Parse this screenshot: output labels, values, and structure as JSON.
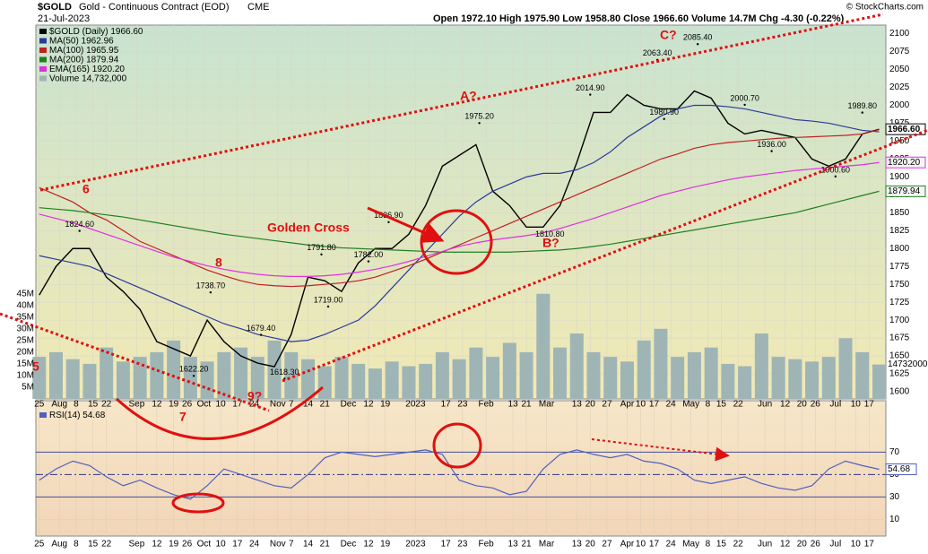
{
  "header": {
    "symbol": "$GOLD",
    "name": "Gold - Continuous Contract (EOD)",
    "exchange": "CME",
    "date": "21-Jul-2023",
    "quote": "Open 1972.10  High 1975.90  Low 1958.80  Close 1966.60  Volume 14.7M  Chg -4.30 (-0.22%)",
    "credit": "© StockCharts.com"
  },
  "notes": {
    "wave6": "6",
    "wave7": "7",
    "wave8": "8",
    "wave9": "9?",
    "waveA": "A?",
    "waveB": "B?",
    "waveC": "C?",
    "cross": "Golden Cross",
    "cut": "5"
  },
  "chart_data": {
    "type": "line",
    "x": [
      0,
      5,
      10,
      15,
      20,
      25,
      30,
      35,
      40,
      45,
      50,
      55,
      60,
      65,
      70,
      75,
      80,
      85,
      90,
      95,
      100,
      105,
      110,
      115,
      120,
      125,
      130,
      135,
      140,
      145,
      150,
      155,
      160,
      165,
      170,
      175,
      180,
      185,
      190,
      195,
      200,
      205,
      210,
      215,
      220,
      225,
      230,
      235,
      240,
      245,
      250
    ],
    "xlim": [
      -1,
      252
    ],
    "xticks": [
      {
        "value": 0,
        "label": "25"
      },
      {
        "value": 6,
        "label": "Aug"
      },
      {
        "value": 11,
        "label": "8"
      },
      {
        "value": 16,
        "label": "15"
      },
      {
        "value": 20,
        "label": "22"
      },
      {
        "value": 29,
        "label": "Sep"
      },
      {
        "value": 35,
        "label": "12"
      },
      {
        "value": 40,
        "label": "19"
      },
      {
        "value": 44,
        "label": "26"
      },
      {
        "value": 49,
        "label": "Oct"
      },
      {
        "value": 54,
        "label": "10"
      },
      {
        "value": 59,
        "label": "17"
      },
      {
        "value": 64,
        "label": "24"
      },
      {
        "value": 71,
        "label": "Nov"
      },
      {
        "value": 75,
        "label": "7"
      },
      {
        "value": 80,
        "label": "14"
      },
      {
        "value": 85,
        "label": "21"
      },
      {
        "value": 92,
        "label": "Dec"
      },
      {
        "value": 98,
        "label": "12"
      },
      {
        "value": 103,
        "label": "19"
      },
      {
        "value": 112,
        "label": "2023"
      },
      {
        "value": 121,
        "label": "17"
      },
      {
        "value": 126,
        "label": "23"
      },
      {
        "value": 133,
        "label": "Feb"
      },
      {
        "value": 141,
        "label": "13"
      },
      {
        "value": 145,
        "label": "21"
      },
      {
        "value": 151,
        "label": "Mar"
      },
      {
        "value": 160,
        "label": "13"
      },
      {
        "value": 164,
        "label": "20"
      },
      {
        "value": 169,
        "label": "27"
      },
      {
        "value": 175,
        "label": "Apr"
      },
      {
        "value": 179,
        "label": "10"
      },
      {
        "value": 183,
        "label": "17"
      },
      {
        "value": 188,
        "label": "24"
      },
      {
        "value": 194,
        "label": "May"
      },
      {
        "value": 199,
        "label": "8"
      },
      {
        "value": 203,
        "label": "15"
      },
      {
        "value": 208,
        "label": "22"
      },
      {
        "value": 216,
        "label": "Jun"
      },
      {
        "value": 222,
        "label": "12"
      },
      {
        "value": 227,
        "label": "20"
      },
      {
        "value": 231,
        "label": "26"
      },
      {
        "value": 237,
        "label": "Jul"
      },
      {
        "value": 243,
        "label": "10"
      },
      {
        "value": 247,
        "label": "17"
      }
    ],
    "ylim": [
      1590,
      2112
    ],
    "yticks": [
      1600,
      1625,
      1650,
      1675,
      1700,
      1725,
      1750,
      1775,
      1800,
      1825,
      1850,
      1875,
      1900,
      1925,
      1950,
      1975,
      2000,
      2025,
      2050,
      2075,
      2100
    ],
    "series": [
      {
        "name": "$GOLD (Daily) 1966.60",
        "color": "#000000",
        "last_label": "1966.60",
        "values": [
          1735,
          1775,
          1800,
          1800,
          1760,
          1740,
          1715,
          1670,
          1660,
          1650,
          1700,
          1670,
          1650,
          1640,
          1635,
          1680,
          1760,
          1755,
          1740,
          1780,
          1800,
          1800,
          1820,
          1860,
          1915,
          1930,
          1945,
          1880,
          1860,
          1830,
          1830,
          1860,
          1920,
          1990,
          1990,
          2015,
          2000,
          1995,
          1995,
          2020,
          2010,
          1975,
          1960,
          1965,
          1960,
          1955,
          1925,
          1915,
          1925,
          1960,
          1966.6
        ]
      },
      {
        "name": "MA(50) 1962.96",
        "color": "#2a3a9a",
        "values": [
          1790,
          1785,
          1780,
          1775,
          1765,
          1755,
          1745,
          1735,
          1725,
          1715,
          1705,
          1695,
          1688,
          1680,
          1675,
          1670,
          1672,
          1680,
          1690,
          1700,
          1720,
          1745,
          1770,
          1795,
          1820,
          1845,
          1865,
          1880,
          1890,
          1900,
          1905,
          1905,
          1910,
          1920,
          1935,
          1955,
          1970,
          1985,
          1995,
          2000,
          2000,
          1998,
          1995,
          1990,
          1985,
          1980,
          1978,
          1975,
          1970,
          1965,
          1962.96
        ]
      },
      {
        "name": "MA(100) 1965.95",
        "color": "#c02020",
        "values": [
          1885,
          1875,
          1865,
          1850,
          1840,
          1825,
          1810,
          1800,
          1790,
          1780,
          1770,
          1762,
          1755,
          1750,
          1748,
          1747,
          1748,
          1750,
          1752,
          1755,
          1760,
          1768,
          1776,
          1785,
          1795,
          1805,
          1815,
          1825,
          1835,
          1845,
          1855,
          1865,
          1875,
          1885,
          1895,
          1905,
          1915,
          1925,
          1932,
          1940,
          1945,
          1948,
          1950,
          1952,
          1954,
          1955,
          1956,
          1957,
          1958,
          1960,
          1965.95
        ]
      },
      {
        "name": "MA(200) 1879.94",
        "color": "#208020",
        "last_label": "1879.94",
        "values": [
          1857,
          1855,
          1853,
          1850,
          1847,
          1844,
          1840,
          1836,
          1832,
          1828,
          1824,
          1820,
          1817,
          1814,
          1811,
          1808,
          1805,
          1803,
          1801,
          1800,
          1799,
          1798,
          1797,
          1796,
          1795,
          1795,
          1795,
          1795,
          1795,
          1796,
          1797,
          1798,
          1800,
          1803,
          1806,
          1810,
          1814,
          1818,
          1822,
          1826,
          1830,
          1834,
          1838,
          1842,
          1846,
          1850,
          1856,
          1862,
          1868,
          1874,
          1879.94
        ]
      },
      {
        "name": "EMA(165) 1920.20",
        "color": "#e030e0",
        "last_label": "1920.20",
        "values": [
          1848,
          1842,
          1836,
          1828,
          1820,
          1812,
          1804,
          1796,
          1788,
          1782,
          1776,
          1771,
          1767,
          1764,
          1762,
          1761,
          1761,
          1762,
          1764,
          1767,
          1771,
          1776,
          1782,
          1789,
          1796,
          1803,
          1808,
          1812,
          1815,
          1818,
          1822,
          1828,
          1835,
          1842,
          1850,
          1858,
          1866,
          1874,
          1880,
          1886,
          1891,
          1896,
          1900,
          1903,
          1906,
          1909,
          1911,
          1913,
          1915,
          1917,
          1920.2
        ]
      }
    ],
    "annotations": [
      {
        "x": 12,
        "value": 1824.6,
        "label": "1824.60"
      },
      {
        "x": 84,
        "value": 1791.8,
        "label": "1791.80"
      },
      {
        "x": 51,
        "value": 1738.7,
        "label": "1738.70"
      },
      {
        "x": 66,
        "value": 1679.4,
        "label": "1679.40"
      },
      {
        "x": 46,
        "value": 1622.2,
        "label": "1622.20"
      },
      {
        "x": 73,
        "value": 1618.3,
        "label": "1618.30"
      },
      {
        "x": 104,
        "value": 1836.9,
        "label": "1836.90"
      },
      {
        "x": 98,
        "value": 1782,
        "label": "1782.00"
      },
      {
        "x": 86,
        "value": 1719,
        "label": "1719.00"
      },
      {
        "x": 131,
        "value": 1975.2,
        "label": "1975.20"
      },
      {
        "x": 164,
        "value": 2014.9,
        "label": "2014.90"
      },
      {
        "x": 184,
        "value": 2063.4,
        "label": "2063.40"
      },
      {
        "x": 196,
        "value": 2085.4,
        "label": "2085.40"
      },
      {
        "x": 186,
        "value": 1980.9,
        "label": "1980.90"
      },
      {
        "x": 152,
        "value": 1810.8,
        "label": "1810.80"
      },
      {
        "x": 210,
        "value": 2000.7,
        "label": "2000.70"
      },
      {
        "x": 218,
        "value": 1936,
        "label": "1936.00"
      },
      {
        "x": 237,
        "value": 1900.6,
        "label": "1900.60"
      },
      {
        "x": 245,
        "value": 1989.8,
        "label": "1989.80"
      }
    ],
    "volume": {
      "name": "Volume 14,732,000",
      "color": "#9fb5b5",
      "ylim": [
        0,
        160
      ],
      "yticks": [
        {
          "value": 5,
          "label": "5M"
        },
        {
          "value": 10,
          "label": "10M"
        },
        {
          "value": 15,
          "label": "15M"
        },
        {
          "value": 20,
          "label": "20M"
        },
        {
          "value": 25,
          "label": "25M"
        },
        {
          "value": 30,
          "label": "30M"
        },
        {
          "value": 35,
          "label": "35M"
        },
        {
          "value": 40,
          "label": "40M"
        },
        {
          "value": 45,
          "label": "45M"
        }
      ],
      "values": [
        18,
        20,
        17,
        15,
        22,
        16,
        18,
        20,
        25,
        18,
        16,
        20,
        22,
        18,
        25,
        20,
        17,
        14,
        18,
        15,
        13,
        16,
        14,
        15,
        20,
        17,
        22,
        18,
        24,
        20,
        45,
        22,
        28,
        20,
        18,
        16,
        25,
        30,
        18,
        20,
        22,
        15,
        14,
        28,
        18,
        17,
        16,
        18,
        26,
        20,
        14.732
      ],
      "last_label": "14732000"
    },
    "rsi": {
      "name": "RSI(14) 54.68",
      "color": "#5060c0",
      "ylim": [
        -5,
        116
      ],
      "yticks": [
        10,
        30,
        50,
        70
      ],
      "last_label": "54.68",
      "values": [
        45,
        55,
        62,
        58,
        48,
        40,
        45,
        38,
        32,
        28,
        40,
        55,
        50,
        45,
        40,
        38,
        50,
        65,
        70,
        68,
        66,
        68,
        70,
        72,
        68,
        45,
        40,
        38,
        32,
        35,
        55,
        68,
        72,
        68,
        65,
        68,
        62,
        60,
        55,
        45,
        42,
        45,
        48,
        42,
        38,
        36,
        40,
        55,
        62,
        58,
        54.68
      ]
    }
  }
}
